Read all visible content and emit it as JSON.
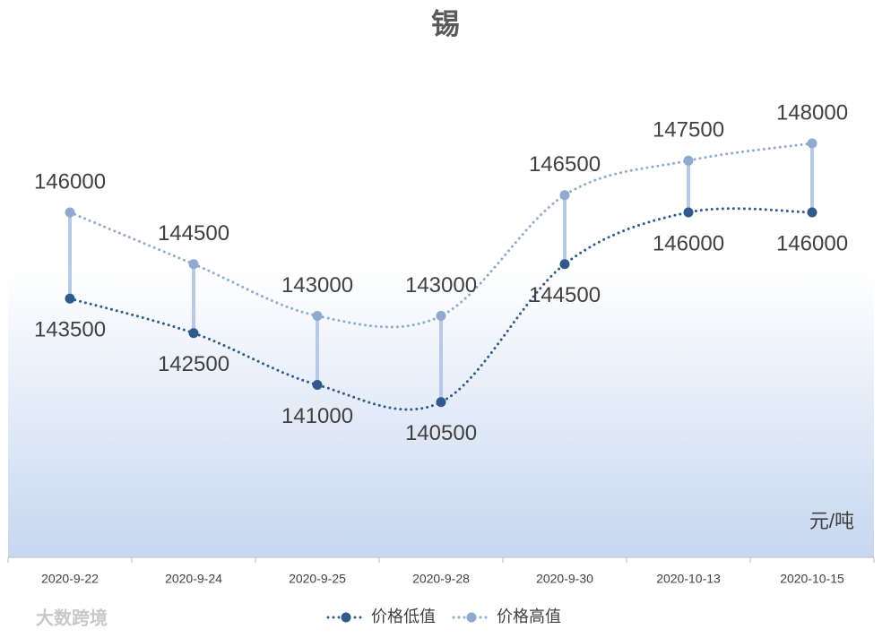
{
  "chart_data": {
    "type": "line",
    "title": "锡",
    "unit_label": "元/吨",
    "watermark": "大数跨境",
    "categories": [
      "2020-9-22",
      "2020-9-24",
      "2020-9-25",
      "2020-9-28",
      "2020-9-30",
      "2020-10-13",
      "2020-10-15"
    ],
    "series": [
      {
        "name": "价格低值",
        "color": "#2f5b8c",
        "values": [
          143500,
          142500,
          141000,
          140500,
          144500,
          146000,
          146000
        ]
      },
      {
        "name": "价格高值",
        "color": "#8faad0",
        "values": [
          146000,
          144500,
          143000,
          143000,
          146500,
          147500,
          148000
        ]
      }
    ],
    "ylim": [
      136000,
      150000
    ],
    "high_low_color": "#b7c9e6",
    "legend": "bottom"
  }
}
